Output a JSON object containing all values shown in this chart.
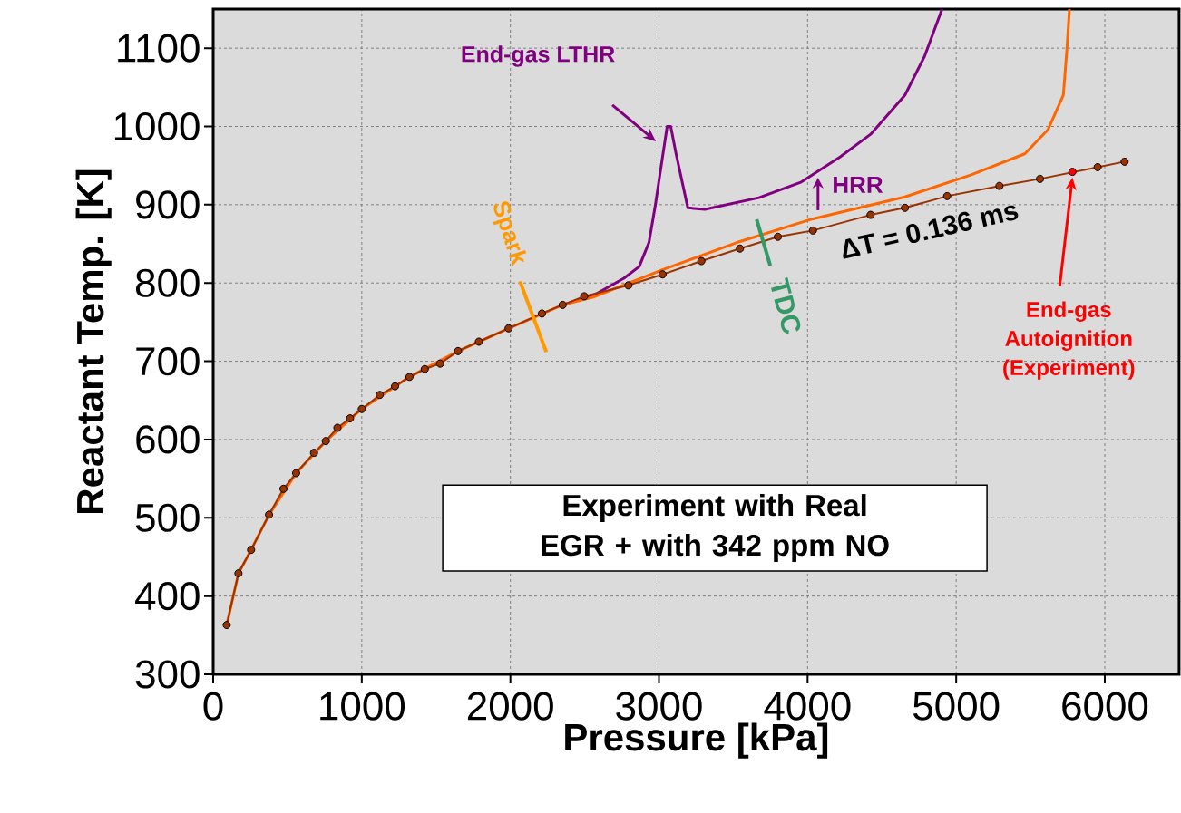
{
  "chart_data": {
    "type": "line",
    "xlabel": "Pressure [kPa]",
    "ylabel": "Reactant Temp. [K]",
    "xlim": [
      0,
      6500
    ],
    "ylim": [
      300,
      1150
    ],
    "xticks": [
      0,
      1000,
      2000,
      3000,
      4000,
      5000,
      6000
    ],
    "yticks": [
      300,
      400,
      500,
      600,
      700,
      800,
      900,
      1000,
      1100
    ],
    "grid": true,
    "line_style": "solid",
    "series": [
      {
        "color": "#800080",
        "marker": "none",
        "x": [
          2352,
          2558,
          2764,
          2867,
          2933,
          2976,
          3012,
          3055,
          3079,
          3115,
          3194,
          3309,
          3673,
          3958,
          4218,
          4424,
          4655,
          4788,
          4905
        ],
        "values": [
          772,
          784,
          806,
          821,
          852,
          900,
          946,
          1000,
          1000,
          965,
          896,
          894,
          909,
          929,
          961,
          990,
          1040,
          1090,
          1150
        ]
      },
      {
        "color": "#ff6600",
        "marker": "none",
        "x": [
          91,
          170,
          255,
          376,
          558,
          758,
          1000,
          1321,
          1648,
          1988,
          2352,
          2558,
          3024,
          3545,
          4036,
          4655,
          5097,
          5461,
          5618,
          5721,
          5745,
          5762
        ],
        "values": [
          363,
          429,
          459,
          504,
          557,
          598,
          639,
          680,
          713,
          742,
          772,
          782,
          817,
          853,
          882,
          910,
          938,
          965,
          996,
          1040,
          1099,
          1150
        ]
      },
      {
        "color": "#993300",
        "marker": "circle",
        "x": [
          91,
          170,
          255,
          376,
          473,
          558,
          679,
          758,
          836,
          921,
          1000,
          1121,
          1224,
          1321,
          1424,
          1527,
          1648,
          1788,
          1988,
          2212,
          2352,
          2497,
          2794,
          3024,
          3285,
          3545,
          3800,
          4036,
          4424,
          4655,
          4939,
          5291,
          5564,
          5782,
          5952,
          6133
        ],
        "values": [
          363,
          429,
          459,
          504,
          537,
          557,
          583,
          598,
          615,
          627,
          639,
          657,
          668,
          680,
          690,
          697,
          713,
          725,
          742,
          761,
          772,
          783,
          797,
          811,
          828,
          844,
          859,
          867,
          887,
          896,
          911,
          924,
          933,
          null,
          948,
          955
        ]
      },
      {
        "type": "scatter",
        "color": "#ff0000",
        "marker": "circle",
        "x": [
          5782
        ],
        "values": [
          942
        ]
      }
    ],
    "annotations": [
      "End-gas LTHR",
      {
        "text": "HRR",
        "x": 4070,
        "y": 937
      },
      {
        "text": "Spark",
        "x": 2150,
        "y": 757
      },
      {
        "text": "TDC",
        "x": 3700,
        "y": 851
      },
      "End-gas Autoignition (Experiment)",
      "ΔT = 0.136 ms",
      "Experiment with Real EGR + with 342 ppm NO"
    ]
  }
}
